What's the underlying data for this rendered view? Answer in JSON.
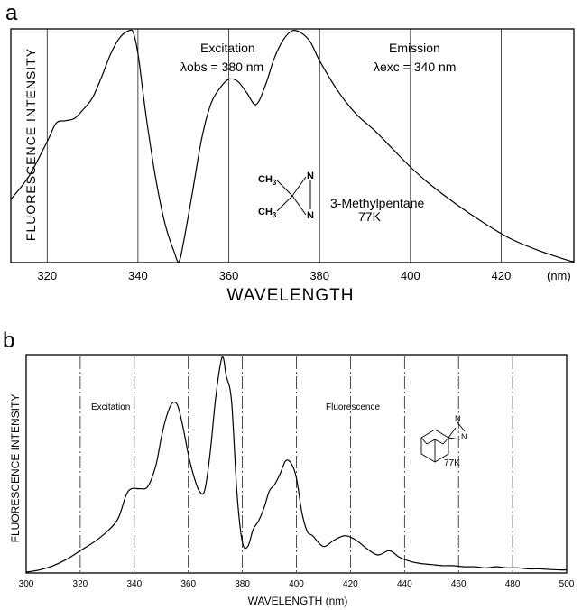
{
  "chart_data": [
    {
      "panel": "a",
      "type": "line",
      "xlabel": "WAVELENGTH",
      "ylabel": "FLUORESCENCE INTENSITY",
      "xlim": [
        312,
        436
      ],
      "ylim": [
        0,
        1
      ],
      "x_ticks": [
        320,
        340,
        360,
        380,
        400,
        420
      ],
      "x_unit_label": "(nm)",
      "grid": "vertical",
      "series": [
        {
          "name": "",
          "x": [
            312,
            316,
            320,
            322,
            324,
            326,
            328,
            330,
            332,
            334,
            336,
            338,
            339,
            340,
            341,
            342,
            344,
            346,
            348,
            349,
            350,
            352,
            354,
            356,
            358,
            360,
            362,
            364,
            366,
            368,
            370,
            372,
            374,
            376,
            378,
            380,
            384,
            388,
            392,
            396,
            400,
            404,
            410,
            416,
            422,
            428,
            434,
            436
          ],
          "y": [
            0.27,
            0.37,
            0.52,
            0.6,
            0.61,
            0.62,
            0.66,
            0.71,
            0.8,
            0.9,
            0.97,
            1.0,
            0.99,
            0.9,
            0.75,
            0.6,
            0.35,
            0.16,
            0.04,
            0.0,
            0.08,
            0.3,
            0.53,
            0.68,
            0.75,
            0.79,
            0.78,
            0.73,
            0.68,
            0.76,
            0.88,
            0.96,
            1.0,
            0.99,
            0.95,
            0.87,
            0.74,
            0.64,
            0.57,
            0.49,
            0.41,
            0.34,
            0.25,
            0.17,
            0.1,
            0.05,
            0.01,
            0.0
          ]
        }
      ],
      "annotations": {
        "excitation_title": "Excitation",
        "excitation_condition": "λobs = 380 nm",
        "emission_title": "Emission",
        "emission_condition": "λexc = 340 nm",
        "solvent": "3-Methylpentane",
        "temperature": "77K",
        "methyl_1": "CH",
        "methyl_2": "CH",
        "methyl_sub": "3",
        "nitrogen_1": "N",
        "nitrogen_2": "N"
      }
    },
    {
      "panel": "b",
      "type": "line",
      "xlabel": "WAVELENGTH (nm)",
      "ylabel": "FLUORESCENCE INTENSITY",
      "xlim": [
        300,
        500
      ],
      "ylim": [
        0,
        1
      ],
      "x_ticks": [
        300,
        320,
        340,
        360,
        380,
        400,
        420,
        440,
        460,
        480,
        500
      ],
      "grid": "vertical",
      "series": [
        {
          "name": "",
          "x": [
            300,
            305,
            310,
            315,
            320,
            325,
            330,
            334,
            337,
            339,
            342,
            345,
            348,
            350,
            352,
            354,
            356,
            358,
            360,
            362,
            364,
            366,
            368,
            370,
            372,
            373,
            374,
            376,
            378,
            380,
            382,
            384,
            386,
            388,
            390,
            392,
            394,
            396,
            398,
            400,
            402,
            404,
            406,
            410,
            414,
            418,
            422,
            426,
            430,
            434,
            436,
            438,
            442,
            446,
            450,
            454,
            458,
            462,
            466,
            470,
            474,
            478,
            482,
            486,
            490,
            494,
            498,
            500
          ],
          "y": [
            0.0,
            0.01,
            0.03,
            0.06,
            0.1,
            0.14,
            0.19,
            0.25,
            0.36,
            0.39,
            0.39,
            0.4,
            0.5,
            0.63,
            0.73,
            0.79,
            0.78,
            0.68,
            0.55,
            0.45,
            0.38,
            0.38,
            0.55,
            0.8,
            0.98,
            1.0,
            0.92,
            0.8,
            0.37,
            0.14,
            0.12,
            0.2,
            0.24,
            0.3,
            0.38,
            0.41,
            0.46,
            0.52,
            0.51,
            0.44,
            0.28,
            0.19,
            0.17,
            0.12,
            0.15,
            0.17,
            0.15,
            0.11,
            0.08,
            0.1,
            0.09,
            0.07,
            0.05,
            0.04,
            0.035,
            0.03,
            0.03,
            0.025,
            0.025,
            0.02,
            0.025,
            0.02,
            0.02,
            0.015,
            0.015,
            0.012,
            0.01,
            0.01
          ]
        }
      ],
      "annotations": {
        "excitation_title": "Excitation",
        "fluorescence_title": "Fluorescence",
        "temperature": "77K",
        "nitrogen_1": "N",
        "nitrogen_2": "N"
      }
    }
  ]
}
